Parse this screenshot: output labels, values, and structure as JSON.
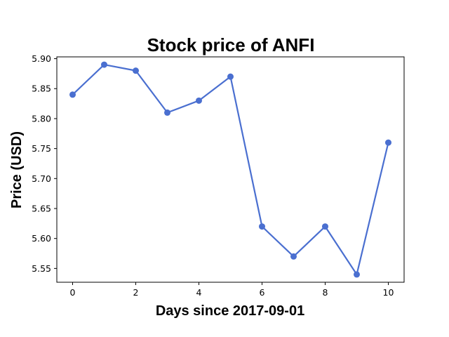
{
  "chart_data": {
    "type": "line",
    "title": "Stock price of ANFI",
    "xlabel": "Days since 2017-09-01",
    "ylabel": "Price (USD)",
    "x": [
      0,
      1,
      2,
      3,
      4,
      5,
      6,
      7,
      8,
      9,
      10
    ],
    "series": [
      {
        "values": [
          5.84,
          5.89,
          5.88,
          5.81,
          5.83,
          5.87,
          5.62,
          5.57,
          5.62,
          5.54,
          5.76
        ]
      }
    ],
    "xlim": [
      -0.5,
      10.5
    ],
    "ylim": [
      5.527,
      5.903
    ],
    "xticks": [
      0,
      2,
      4,
      6,
      8,
      10
    ],
    "xtick_labels": [
      "0",
      "2",
      "4",
      "6",
      "8",
      "10"
    ],
    "yticks": [
      5.55,
      5.6,
      5.65,
      5.7,
      5.75,
      5.8,
      5.85,
      5.9
    ],
    "ytick_labels": [
      "5.55",
      "5.60",
      "5.65",
      "5.70",
      "5.75",
      "5.80",
      "5.85",
      "5.90"
    ],
    "grid": false,
    "line_color": "#4a6fd0",
    "marker": "circle"
  }
}
